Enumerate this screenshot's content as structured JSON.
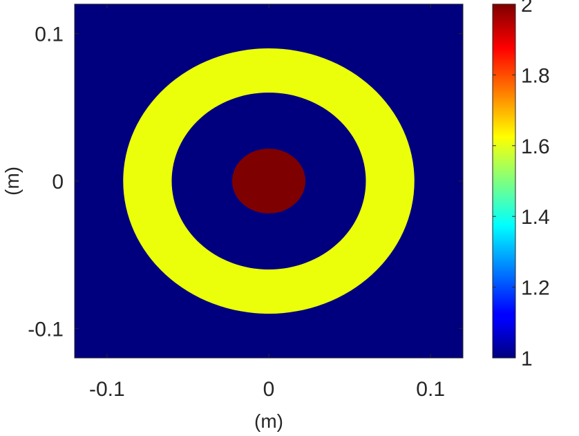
{
  "chart_data": {
    "type": "heatmap",
    "title": "",
    "xlabel": "(m)",
    "ylabel": "(m)",
    "xlim": [
      -0.12,
      0.12
    ],
    "ylim": [
      -0.12,
      0.12
    ],
    "xticks": [
      -0.1,
      0,
      0.1
    ],
    "yticks": [
      -0.1,
      0,
      0.1
    ],
    "x_tick_labels": [
      "-0.1",
      "0",
      "0.1"
    ],
    "y_tick_labels": [
      "-0.1",
      "0",
      "0.1"
    ],
    "background_value": 1,
    "regions": [
      {
        "shape": "annulus",
        "center": [
          0,
          0
        ],
        "inner_radius": 0.06,
        "outer_radius": 0.09,
        "value": 1.6
      },
      {
        "shape": "disk",
        "center": [
          0,
          0
        ],
        "radius": 0.022,
        "value": 2
      }
    ],
    "colorbar": {
      "colormap": "jet",
      "range": [
        1,
        2
      ],
      "ticks": [
        1,
        1.2,
        1.4,
        1.6,
        1.8,
        2
      ],
      "tick_labels": [
        "1",
        "1.2",
        "1.4",
        "1.6",
        "1.8",
        "2"
      ]
    },
    "grid": false,
    "colors": {
      "background": "#00007f",
      "ring": "#ebff0b",
      "core": "#7f0000"
    }
  }
}
